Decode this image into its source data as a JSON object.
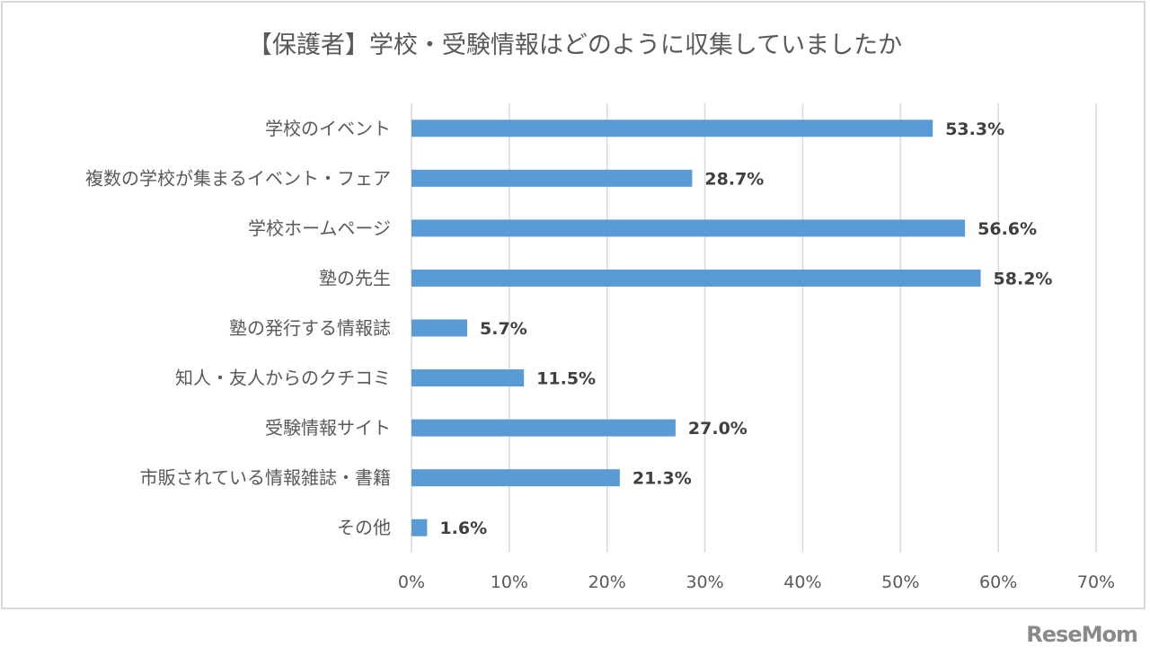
{
  "chart_data": {
    "type": "bar",
    "orientation": "horizontal",
    "title": "【保護者】学校・受験情報はどのように収集していましたか",
    "categories": [
      "学校のイベント",
      "複数の学校が集まるイベント・フェア",
      "学校ホームページ",
      "塾の先生",
      "塾の発行する情報誌",
      "知人・友人からのクチコミ",
      "受験情報サイト",
      "市販されている情報雑誌・書籍",
      "その他"
    ],
    "values": [
      53.3,
      28.7,
      56.6,
      58.2,
      5.7,
      11.5,
      27.0,
      21.3,
      1.6
    ],
    "value_labels": [
      "53.3%",
      "28.7%",
      "56.6%",
      "58.2%",
      "5.7%",
      "11.5%",
      "27.0%",
      "21.3%",
      "1.6%"
    ],
    "xlim": [
      0,
      70
    ],
    "xticks": [
      "0%",
      "10%",
      "20%",
      "30%",
      "40%",
      "50%",
      "60%",
      "70%"
    ],
    "grid": true,
    "bar_color": "#5b9bd5",
    "xlabel": "",
    "ylabel": ""
  },
  "logo": "ReseMom"
}
